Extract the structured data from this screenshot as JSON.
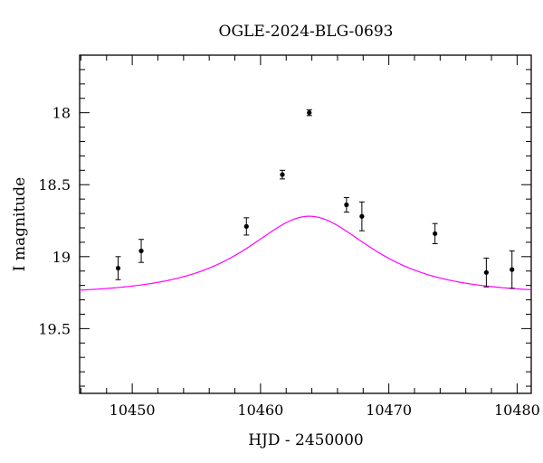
{
  "chart_data": {
    "type": "scatter",
    "title": "OGLE-2024-BLG-0693",
    "xlabel": "HJD - 2450000",
    "ylabel": "I magnitude",
    "xlim": [
      10445.9,
      10481.1
    ],
    "ylim": [
      19.95,
      17.6
    ],
    "y_inverted": true,
    "x_major_ticks": [
      10450,
      10460,
      10470,
      10480
    ],
    "x_tick_labels": [
      "10450",
      "10460",
      "10470",
      "10480"
    ],
    "x_minor_step": 2,
    "y_major_ticks": [
      18,
      18.5,
      19,
      19.5
    ],
    "y_tick_labels": [
      "18",
      "18.5",
      "19",
      "19.5"
    ],
    "y_minor_step": 0.1,
    "grid": false,
    "legend": "none",
    "observations": [
      {
        "x": 10448.9,
        "y": 19.08,
        "err": 0.08
      },
      {
        "x": 10450.7,
        "y": 18.96,
        "err": 0.08
      },
      {
        "x": 10458.9,
        "y": 18.79,
        "err": 0.06
      },
      {
        "x": 10461.7,
        "y": 18.43,
        "err": 0.03
      },
      {
        "x": 10463.8,
        "y": 18.0,
        "err": 0.02
      },
      {
        "x": 10466.7,
        "y": 18.64,
        "err": 0.05
      },
      {
        "x": 10467.9,
        "y": 18.72,
        "err": 0.1
      },
      {
        "x": 10473.6,
        "y": 18.84,
        "err": 0.07
      },
      {
        "x": 10477.6,
        "y": 19.11,
        "err": 0.1
      },
      {
        "x": 10479.6,
        "y": 19.09,
        "err": 0.13
      }
    ],
    "model": {
      "color": "#ff00ff",
      "kind": "PSPL",
      "t0": 10463.8,
      "u0": 0.72,
      "tE": 7,
      "baseline_mag": 19.26
    },
    "point_color": "#000000"
  }
}
